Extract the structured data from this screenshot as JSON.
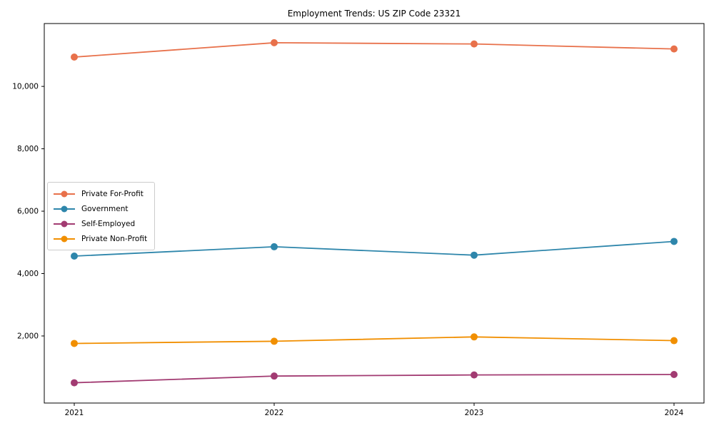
{
  "chart_data": {
    "type": "line",
    "title": "Employment Trends: US ZIP Code 23321",
    "xlabel": "",
    "ylabel": "",
    "x": [
      2021,
      2022,
      2023,
      2024
    ],
    "x_tick_labels": [
      "2021",
      "2022",
      "2023",
      "2024"
    ],
    "series": [
      {
        "name": "Private For-Profit",
        "color": "#E8714B",
        "values": [
          10940,
          11400,
          11360,
          11200
        ]
      },
      {
        "name": "Government",
        "color": "#2E86AB",
        "values": [
          4560,
          4860,
          4590,
          5030
        ]
      },
      {
        "name": "Self-Employed",
        "color": "#A23B72",
        "values": [
          500,
          715,
          750,
          765
        ]
      },
      {
        "name": "Private Non-Profit",
        "color": "#F18F01",
        "values": [
          1760,
          1830,
          1970,
          1850
        ]
      }
    ],
    "yticks": {
      "values": [
        2000,
        4000,
        6000,
        8000,
        10000
      ],
      "labels": [
        "2,000",
        "4,000",
        "6,000",
        "8,000",
        "10,000"
      ]
    },
    "ylim": [
      -150,
      12015
    ],
    "xlim": [
      2020.85,
      2024.15
    ],
    "grid": false,
    "legend_position": "center-left",
    "axis_color": "#000000",
    "marker_radius": 5,
    "line_width": 1.8
  }
}
